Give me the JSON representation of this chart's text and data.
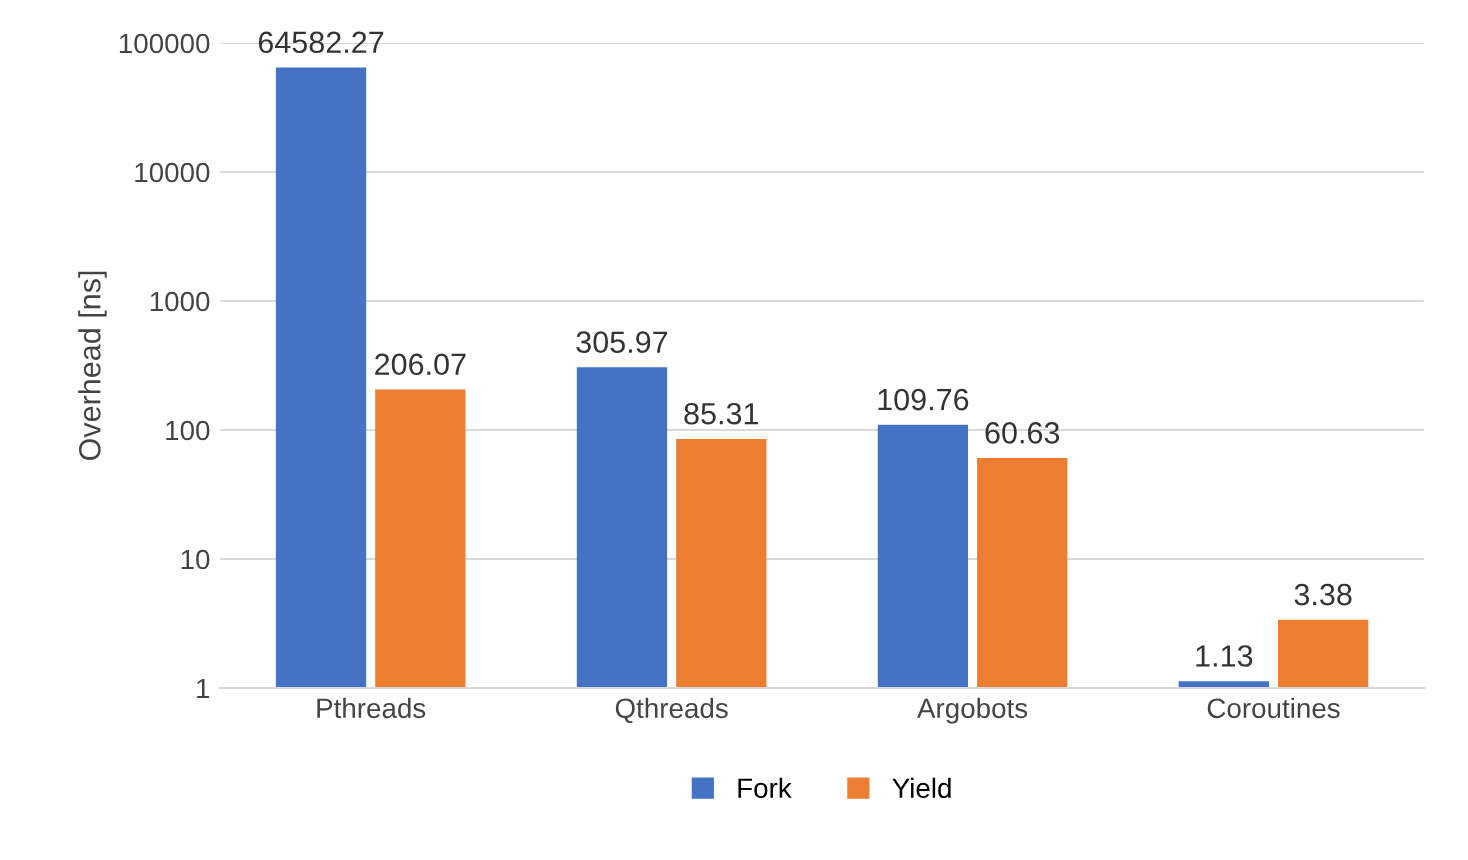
{
  "chart_data": {
    "type": "bar",
    "ylabel": "Overhead [ns]",
    "categories": [
      "Pthreads",
      "Qthreads",
      "Argobots",
      "Coroutines"
    ],
    "series": [
      {
        "name": "Fork",
        "color": "#4472c4",
        "values": [
          64582.27,
          305.97,
          109.76,
          1.13
        ]
      },
      {
        "name": "Yield",
        "color": "#ed7d31",
        "values": [
          206.07,
          85.31,
          60.63,
          3.38
        ]
      }
    ],
    "log": "y",
    "ylim": [
      1,
      100000
    ],
    "yticks": [
      1,
      10,
      100,
      1000,
      10000,
      100000
    ],
    "grid": "y",
    "legend": "bottom",
    "data_labels": true
  }
}
